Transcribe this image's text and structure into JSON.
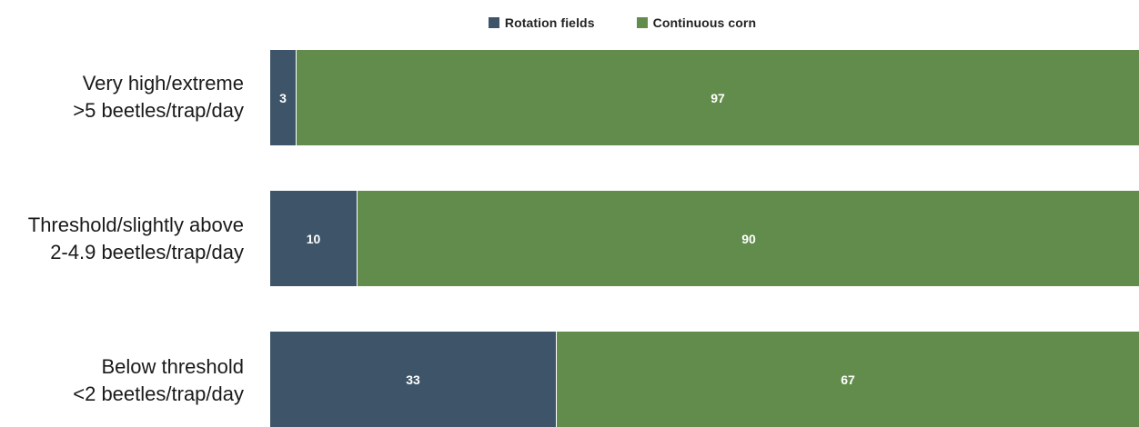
{
  "chart_data": {
    "type": "bar",
    "orientation": "horizontal",
    "stacked": true,
    "legend": {
      "placement": "top-center",
      "entries": [
        "Rotation fields",
        "Continuous corn"
      ]
    },
    "categories": [
      {
        "line1": "Very high/extreme",
        "line2": ">5 beetles/trap/day"
      },
      {
        "line1": "Threshold/slightly above",
        "line2": "2-4.9 beetles/trap/day"
      },
      {
        "line1": "Below threshold",
        "line2": "<2 beetles/trap/day"
      }
    ],
    "series": [
      {
        "name": "Rotation fields",
        "color": "#3e5569",
        "values": [
          3,
          10,
          33
        ]
      },
      {
        "name": "Continuous corn",
        "color": "#618c4b",
        "values": [
          97,
          90,
          67
        ]
      }
    ],
    "xlim": [
      0,
      100
    ],
    "grid": false
  }
}
